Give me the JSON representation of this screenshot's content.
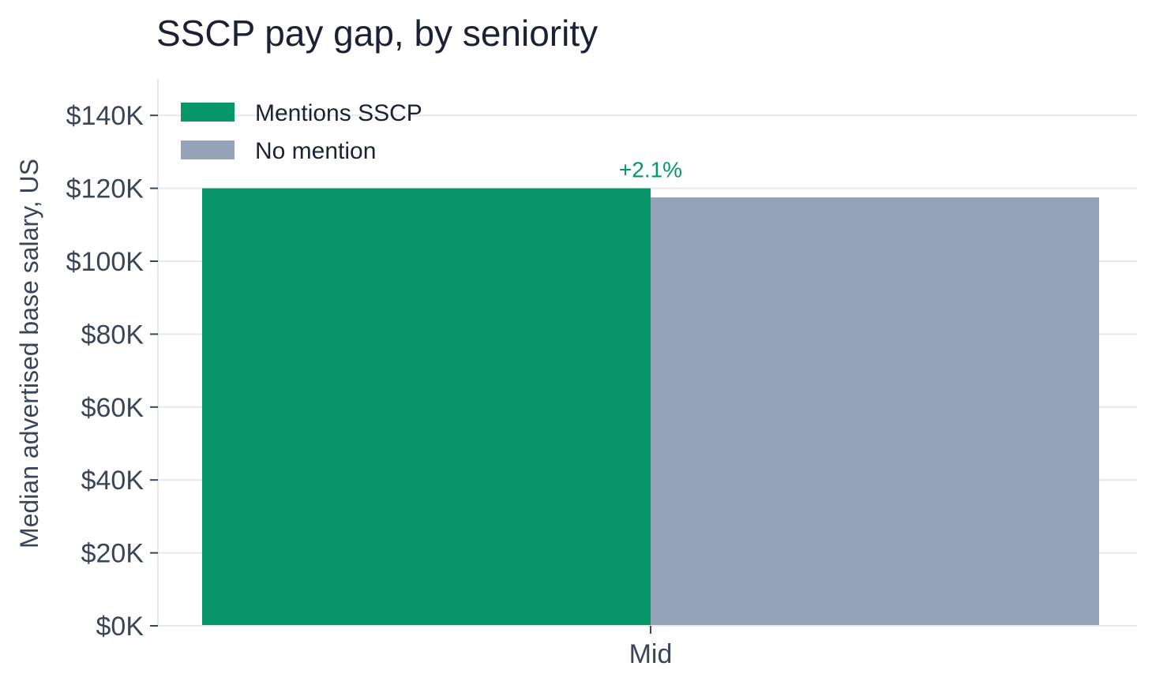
{
  "chart_data": {
    "type": "bar",
    "title": "SSCP pay gap, by seniority",
    "xlabel": "",
    "ylabel": "Median advertised base salary, US",
    "categories": [
      "Mid"
    ],
    "series": [
      {
        "name": "Mentions SSCP",
        "values": [
          120000
        ],
        "color": "#069668"
      },
      {
        "name": "No mention",
        "values": [
          117500
        ],
        "color": "#95a3b8"
      }
    ],
    "ylim": [
      0,
      150000
    ],
    "yticks": [
      0,
      20000,
      40000,
      60000,
      80000,
      100000,
      120000,
      140000
    ],
    "ytick_labels": [
      "$0K",
      "$20K",
      "$40K",
      "$60K",
      "$80K",
      "$100K",
      "$120K",
      "$140K"
    ],
    "annotations": [
      {
        "category": "Mid",
        "text": "+2.1%",
        "color": "#069668"
      }
    ],
    "grid": "horizontal",
    "legend": "top-left"
  }
}
